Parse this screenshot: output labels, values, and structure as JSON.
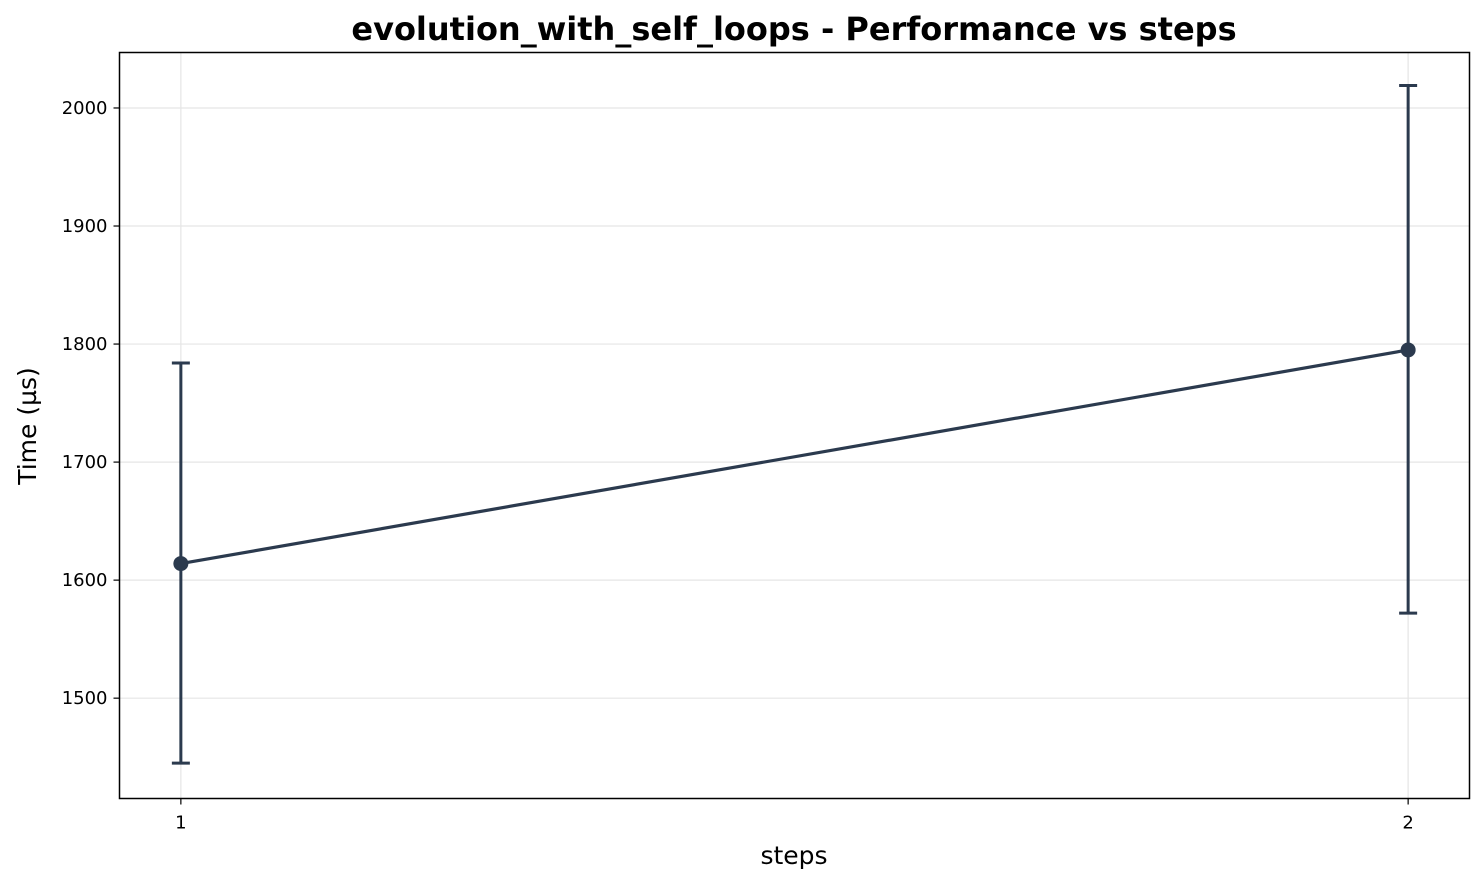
{
  "chart_data": {
    "type": "line",
    "title": "evolution_with_self_loops - Performance vs steps",
    "xlabel": "steps",
    "ylabel": "Time (µs)",
    "x": [
      1,
      2
    ],
    "x_tick_labels": [
      "1",
      "2"
    ],
    "y_ticks": [
      1500,
      1600,
      1700,
      1800,
      1900,
      2000
    ],
    "y_tick_labels": [
      "1500",
      "1600",
      "1700",
      "1800",
      "1900",
      "2000"
    ],
    "xlim": [
      0.95,
      2.05
    ],
    "ylim": [
      1415,
      2047
    ],
    "grid": true,
    "series": [
      {
        "name": "evolution_with_self_loops",
        "values": [
          1614,
          1795
        ],
        "error_low": [
          1445,
          1572
        ],
        "error_high": [
          1784,
          2019
        ],
        "color": "#2b3a4e"
      }
    ]
  }
}
